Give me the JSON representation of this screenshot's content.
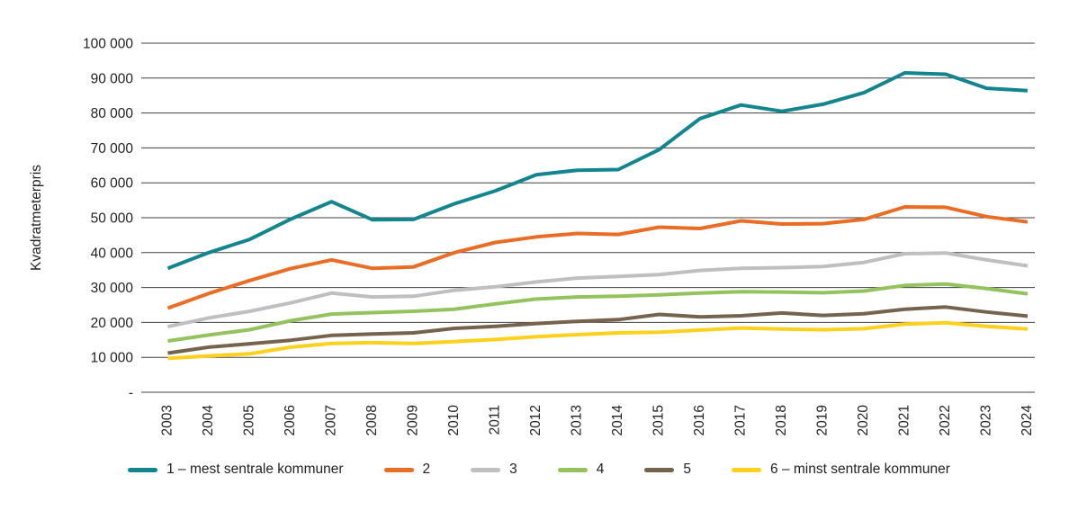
{
  "chart_data": {
    "type": "line",
    "title": "",
    "xlabel": "",
    "ylabel": "Kvadratmeterpris",
    "ylim": [
      0,
      100000
    ],
    "ytick_step": 10000,
    "ytick_labels": [
      "-",
      "10 000",
      "20 000",
      "30 000",
      "40 000",
      "50 000",
      "60 000",
      "70 000",
      "80 000",
      "90 000",
      "100 000"
    ],
    "zero_tick_label": "-",
    "grid": "horizontal",
    "legend_position": "bottom",
    "gridline_color": "#404040",
    "text_color": "#222222",
    "categories": [
      2003,
      2004,
      2005,
      2006,
      2007,
      2008,
      2009,
      2010,
      2011,
      2012,
      2013,
      2014,
      2015,
      2016,
      2017,
      2018,
      2019,
      2020,
      2021,
      2022,
      2023,
      2024
    ],
    "series": [
      {
        "name": "1 – mest sentrale kommuner",
        "color": "#13858e",
        "values": [
          35500,
          40000,
          43800,
          49600,
          54600,
          49400,
          49500,
          54000,
          57700,
          62300,
          63600,
          63800,
          69500,
          78400,
          82300,
          80500,
          82500,
          85800,
          91500,
          91100,
          87100,
          86400
        ]
      },
      {
        "name": "2",
        "color": "#ea6d26",
        "values": [
          24100,
          28300,
          32000,
          35400,
          37900,
          35500,
          35900,
          40000,
          42900,
          44500,
          45500,
          45200,
          47300,
          46900,
          49100,
          48200,
          48300,
          49500,
          53100,
          53000,
          50300,
          48800
        ]
      },
      {
        "name": "3",
        "color": "#bfbfbf",
        "values": [
          18800,
          21300,
          23200,
          25600,
          28400,
          27300,
          27500,
          29200,
          30200,
          31600,
          32700,
          33200,
          33700,
          34900,
          35500,
          35700,
          36000,
          37200,
          39700,
          39900,
          37900,
          36200
        ]
      },
      {
        "name": "4",
        "color": "#94c35e",
        "values": [
          14700,
          16400,
          17900,
          20500,
          22400,
          22800,
          23200,
          23800,
          25300,
          26700,
          27300,
          27500,
          27900,
          28400,
          28800,
          28700,
          28500,
          29000,
          30600,
          31000,
          29700,
          28200
        ]
      },
      {
        "name": "5",
        "color": "#76634e",
        "values": [
          11200,
          12900,
          13900,
          14900,
          16300,
          16700,
          17000,
          18300,
          18900,
          19700,
          20300,
          20800,
          22300,
          21600,
          21900,
          22700,
          22000,
          22500,
          23800,
          24400,
          23000,
          21800
        ]
      },
      {
        "name": "6 – minst sentrale kommuner",
        "color": "#fdd11e",
        "values": [
          9700,
          10400,
          11000,
          12900,
          14000,
          14200,
          14000,
          14500,
          15100,
          15900,
          16500,
          17000,
          17200,
          17800,
          18400,
          18100,
          17900,
          18200,
          19500,
          19900,
          18900,
          18100
        ]
      }
    ]
  }
}
